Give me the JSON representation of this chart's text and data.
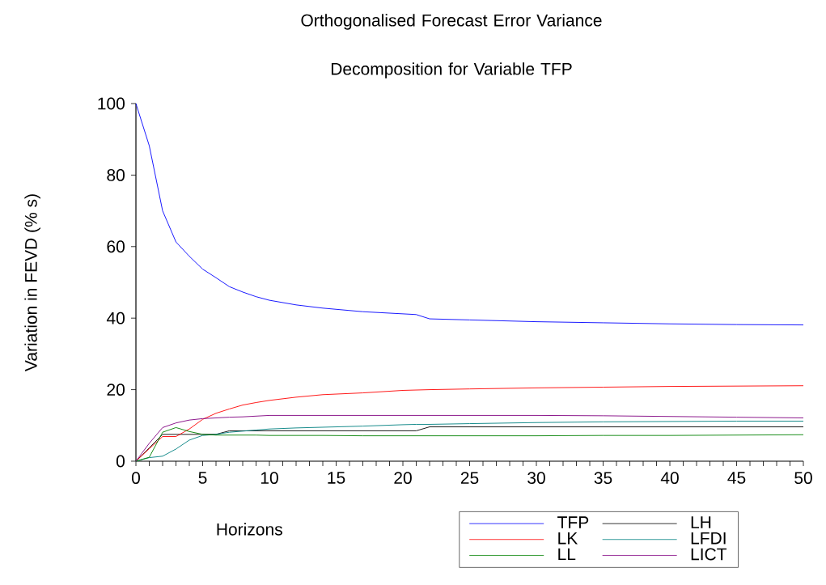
{
  "chart_data": {
    "type": "line",
    "title": "Orthogonalised Forecast Error Variance Decomposition for Variable TFP",
    "xlabel": "Horizons",
    "ylabel": "Variation in FEVD (% s)",
    "x": [
      0,
      1,
      2,
      3,
      4,
      5,
      6,
      7,
      8,
      9,
      10,
      12,
      14,
      17,
      20,
      21,
      22,
      25,
      30,
      35,
      40,
      45,
      50
    ],
    "series": [
      {
        "name": "TFP",
        "color": "#0000ff",
        "values": [
          100,
          88.2,
          70.0,
          61.3,
          57.3,
          53.7,
          51.3,
          48.8,
          47.3,
          46.0,
          45.0,
          43.7,
          42.8,
          41.8,
          41.2,
          41.0,
          39.8,
          39.5,
          39.0,
          38.7,
          38.4,
          38.2,
          38.1
        ]
      },
      {
        "name": "LH",
        "color": "#000000",
        "values": [
          0,
          3.7,
          7.5,
          7.5,
          7.5,
          7.5,
          7.5,
          8.5,
          8.5,
          8.5,
          8.5,
          8.5,
          8.5,
          8.5,
          8.5,
          8.5,
          9.6,
          9.6,
          9.6,
          9.6,
          9.6,
          9.6,
          9.6
        ]
      },
      {
        "name": "LK",
        "color": "#ff0000",
        "values": [
          0,
          3.5,
          6.9,
          6.9,
          9.0,
          11.7,
          13.4,
          14.6,
          15.7,
          16.4,
          17.0,
          17.9,
          18.6,
          19.1,
          19.8,
          19.9,
          20.0,
          20.2,
          20.5,
          20.7,
          20.9,
          21.0,
          21.1
        ]
      },
      {
        "name": "LFDI",
        "color": "#008080",
        "values": [
          0,
          1.0,
          1.4,
          3.4,
          5.9,
          7.2,
          7.5,
          8.1,
          8.4,
          8.7,
          9.0,
          9.3,
          9.5,
          9.8,
          10.2,
          10.3,
          10.3,
          10.5,
          10.8,
          11.0,
          11.1,
          11.2,
          11.2
        ]
      },
      {
        "name": "LL",
        "color": "#008000",
        "values": [
          0,
          1.1,
          8.1,
          9.4,
          8.3,
          7.5,
          7.3,
          7.3,
          7.3,
          7.3,
          7.2,
          7.2,
          7.2,
          7.1,
          7.1,
          7.1,
          7.1,
          7.1,
          7.1,
          7.2,
          7.2,
          7.3,
          7.4
        ]
      },
      {
        "name": "LICT",
        "color": "#800080",
        "values": [
          0,
          5.0,
          9.4,
          10.7,
          11.5,
          11.9,
          12.1,
          12.3,
          12.4,
          12.6,
          12.8,
          12.8,
          12.8,
          12.8,
          12.8,
          12.8,
          12.8,
          12.8,
          12.8,
          12.7,
          12.5,
          12.3,
          12.1
        ]
      }
    ],
    "xlim": [
      0,
      50
    ],
    "xticks": [
      0,
      5,
      10,
      15,
      20,
      25,
      30,
      35,
      40,
      45,
      50
    ],
    "ylim": [
      0,
      100
    ],
    "yticks": [
      0,
      20,
      40,
      60,
      80,
      100
    ],
    "grid": false,
    "legend": "bottom right",
    "marker": "none",
    "line_style": "solid"
  }
}
